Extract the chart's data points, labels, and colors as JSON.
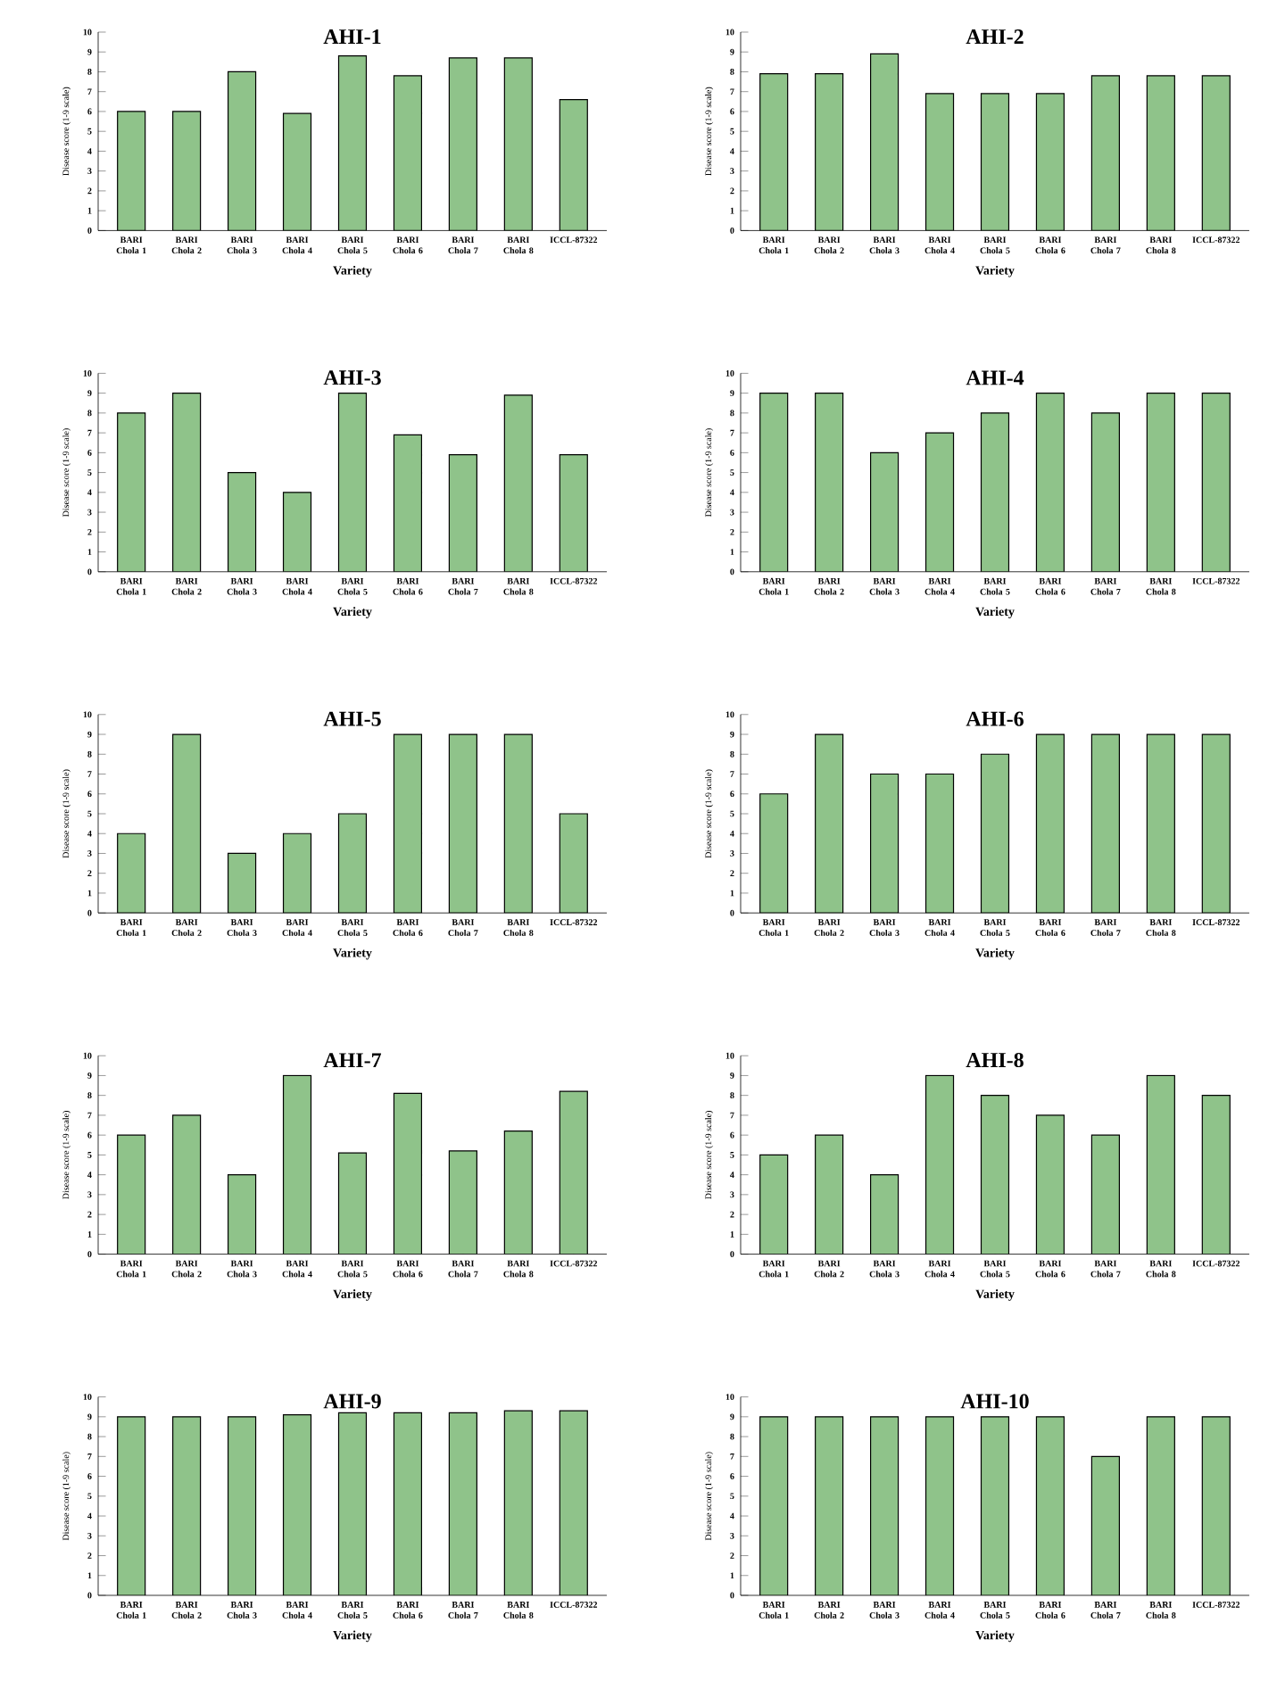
{
  "chart_data": [
    {
      "type": "bar",
      "title": "AHI-1",
      "xlabel": "Variety",
      "ylabel": "Disease score (1-9 scale)",
      "categories": [
        "BARI Chola 1",
        "BARI Chola 2",
        "BARI Chola 3",
        "BARI Chola 4",
        "BARI Chola 5",
        "BARI Chola 6",
        "BARI Chola 7",
        "BARI Chola 8",
        "ICCL-87322"
      ],
      "values": [
        6,
        6,
        8,
        5.9,
        8.8,
        7.8,
        8.7,
        8.7,
        6.6
      ],
      "color": "#8fc38a",
      "ylim": [
        0,
        10
      ],
      "yticks": [
        0,
        1,
        2,
        3,
        4,
        5,
        6,
        7,
        8,
        9,
        10
      ]
    },
    {
      "type": "bar",
      "title": "AHI-2",
      "xlabel": "Variety",
      "ylabel": "Disease score (1-9 scale)",
      "categories": [
        "BARI Chola 1",
        "BARI Chola 2",
        "BARI Chola 3",
        "BARI Chola 4",
        "BARI Chola 5",
        "BARI Chola 6",
        "BARI Chola 7",
        "BARI Chola 8",
        "ICCL-87322"
      ],
      "values": [
        7.9,
        7.9,
        8.9,
        6.9,
        6.9,
        6.9,
        7.8,
        7.8,
        7.8
      ],
      "color": "#8fc38a",
      "ylim": [
        0,
        10
      ],
      "yticks": [
        0,
        1,
        2,
        3,
        4,
        5,
        6,
        7,
        8,
        9,
        10
      ]
    },
    {
      "type": "bar",
      "title": "AHI-3",
      "xlabel": "Variety",
      "ylabel": "Disease score (1-9 scale)",
      "categories": [
        "BARI Chola 1",
        "BARI Chola 2",
        "BARI Chola 3",
        "BARI Chola 4",
        "BARI Chola 5",
        "BARI Chola 6",
        "BARI Chola 7",
        "BARI Chola 8",
        "ICCL-87322"
      ],
      "values": [
        8,
        9,
        5,
        4,
        9,
        6.9,
        5.9,
        8.9,
        5.9
      ],
      "color": "#8fc38a",
      "ylim": [
        0,
        10
      ],
      "yticks": [
        0,
        1,
        2,
        3,
        4,
        5,
        6,
        7,
        8,
        9,
        10
      ]
    },
    {
      "type": "bar",
      "title": "AHI-4",
      "xlabel": "Variety",
      "ylabel": "Disease score (1-9 scale)",
      "categories": [
        "BARI Chola 1",
        "BARI Chola 2",
        "BARI Chola 3",
        "BARI Chola 4",
        "BARI Chola 5",
        "BARI Chola 6",
        "BARI Chola 7",
        "BARI Chola 8",
        "ICCL-87322"
      ],
      "values": [
        9,
        9,
        6,
        7,
        8,
        9,
        8,
        9,
        9
      ],
      "color": "#8fc38a",
      "ylim": [
        0,
        10
      ],
      "yticks": [
        0,
        1,
        2,
        3,
        4,
        5,
        6,
        7,
        8,
        9,
        10
      ]
    },
    {
      "type": "bar",
      "title": "AHI-5",
      "xlabel": "Variety",
      "ylabel": "Disease score (1-9 scale)",
      "categories": [
        "BARI Chola 1",
        "BARI Chola 2",
        "BARI Chola 3",
        "BARI Chola 4",
        "BARI Chola 5",
        "BARI Chola 6",
        "BARI Chola 7",
        "BARI Chola 8",
        "ICCL-87322"
      ],
      "values": [
        4,
        9,
        3,
        4,
        5,
        9,
        9,
        9,
        5
      ],
      "color": "#8fc38a",
      "ylim": [
        0,
        10
      ],
      "yticks": [
        0,
        1,
        2,
        3,
        4,
        5,
        6,
        7,
        8,
        9,
        10
      ]
    },
    {
      "type": "bar",
      "title": "AHI-6",
      "xlabel": "Variety",
      "ylabel": "Disease score (1-9 scale)",
      "categories": [
        "BARI Chola 1",
        "BARI Chola 2",
        "BARI Chola 3",
        "BARI Chola 4",
        "BARI Chola 5",
        "BARI Chola 6",
        "BARI Chola 7",
        "BARI Chola 8",
        "ICCL-87322"
      ],
      "values": [
        6,
        9,
        7,
        7,
        8,
        9,
        9,
        9,
        9
      ],
      "color": "#8fc38a",
      "ylim": [
        0,
        10
      ],
      "yticks": [
        0,
        1,
        2,
        3,
        4,
        5,
        6,
        7,
        8,
        9,
        10
      ]
    },
    {
      "type": "bar",
      "title": "AHI-7",
      "xlabel": "Variety",
      "ylabel": "Disease score (1-9 scale)",
      "categories": [
        "BARI Chola 1",
        "BARI Chola 2",
        "BARI Chola 3",
        "BARI Chola 4",
        "BARI Chola 5",
        "BARI Chola 6",
        "BARI Chola 7",
        "BARI Chola 8",
        "ICCL-87322"
      ],
      "values": [
        6,
        7,
        4,
        9,
        5.1,
        8.1,
        5.2,
        6.2,
        8.2
      ],
      "color": "#8fc38a",
      "ylim": [
        0,
        10
      ],
      "yticks": [
        0,
        1,
        2,
        3,
        4,
        5,
        6,
        7,
        8,
        9,
        10
      ]
    },
    {
      "type": "bar",
      "title": "AHI-8",
      "xlabel": "Variety",
      "ylabel": "Disease score (1-9 scale)",
      "categories": [
        "BARI Chola 1",
        "BARI Chola 2",
        "BARI Chola 3",
        "BARI Chola 4",
        "BARI Chola 5",
        "BARI Chola 6",
        "BARI Chola 7",
        "BARI Chola 8",
        "ICCL-87322"
      ],
      "values": [
        5,
        6,
        4,
        9,
        8,
        7,
        6,
        9,
        8
      ],
      "color": "#8fc38a",
      "ylim": [
        0,
        10
      ],
      "yticks": [
        0,
        1,
        2,
        3,
        4,
        5,
        6,
        7,
        8,
        9,
        10
      ]
    },
    {
      "type": "bar",
      "title": "AHI-9",
      "xlabel": "Variety",
      "ylabel": "Disease score (1-9 scale)",
      "categories": [
        "BARI Chola 1",
        "BARI Chola 2",
        "BARI Chola 3",
        "BARI Chola 4",
        "BARI Chola 5",
        "BARI Chola 6",
        "BARI Chola 7",
        "BARI Chola 8",
        "ICCL-87322"
      ],
      "values": [
        9,
        9,
        9,
        9.1,
        9.2,
        9.2,
        9.2,
        9.3,
        9.3
      ],
      "color": "#8fc38a",
      "ylim": [
        0,
        10
      ],
      "yticks": [
        0,
        1,
        2,
        3,
        4,
        5,
        6,
        7,
        8,
        9,
        10
      ]
    },
    {
      "type": "bar",
      "title": "AHI-10",
      "xlabel": "Variety",
      "ylabel": "Disease score (1-9 scale)",
      "categories": [
        "BARI Chola 1",
        "BARI Chola 2",
        "BARI Chola 3",
        "BARI Chola 4",
        "BARI Chola 5",
        "BARI Chola 6",
        "BARI Chola 7",
        "BARI Chola 8",
        "ICCL-87322"
      ],
      "values": [
        9,
        9,
        9,
        9,
        9,
        9,
        7,
        9,
        9
      ],
      "color": "#8fc38a",
      "ylim": [
        0,
        10
      ],
      "yticks": [
        0,
        1,
        2,
        3,
        4,
        5,
        6,
        7,
        8,
        9,
        10
      ]
    }
  ]
}
